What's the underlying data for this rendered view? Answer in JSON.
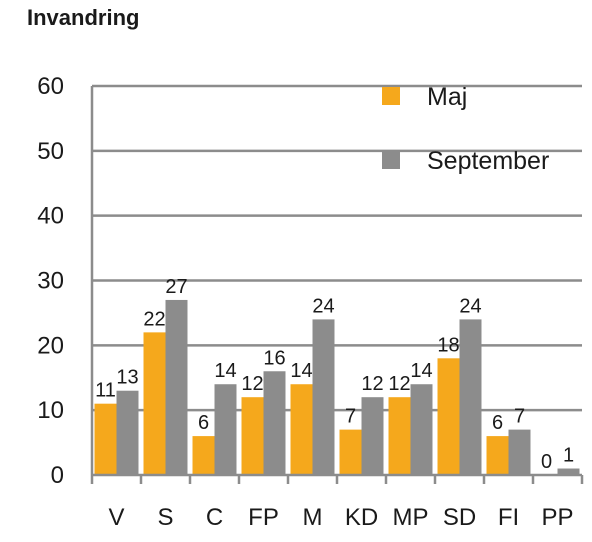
{
  "chart_data": {
    "type": "bar",
    "title": "Invandring",
    "xlabel": "",
    "ylabel": "",
    "ylim": [
      0,
      60
    ],
    "yticks": [
      0,
      10,
      20,
      30,
      40,
      50,
      60
    ],
    "grid": true,
    "legend_position": "top-right",
    "categories": [
      "V",
      "S",
      "C",
      "FP",
      "M",
      "KD",
      "MP",
      "SD",
      "FI",
      "PP"
    ],
    "series": [
      {
        "name": "Maj",
        "color": "#F5A81C",
        "values": [
          11,
          22,
          6,
          12,
          14,
          7,
          12,
          18,
          6,
          0
        ]
      },
      {
        "name": "September",
        "color": "#8C8C8C",
        "values": [
          13,
          27,
          14,
          16,
          24,
          12,
          14,
          24,
          7,
          1
        ]
      }
    ]
  }
}
